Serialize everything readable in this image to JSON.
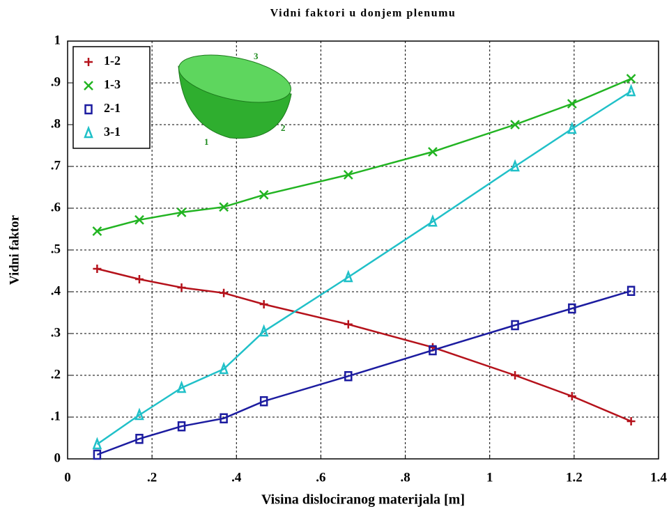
{
  "chart_data": {
    "type": "line",
    "title": "Vidni faktori u donjem plenumu",
    "x_label": "Visina dislociranog materijala [m]",
    "y_label": "Vidni faktor",
    "annotations": [
      "3",
      "2",
      "1"
    ],
    "x": [
      0.07,
      0.17,
      0.27,
      0.37,
      0.465,
      0.665,
      0.865,
      1.06,
      1.195,
      1.335
    ],
    "series": [
      {
        "name": "1-2",
        "color": "#b5121b",
        "marker": "plus",
        "values": [
          0.455,
          0.43,
          0.41,
          0.397,
          0.37,
          0.322,
          0.267,
          0.2,
          0.15,
          0.09
        ]
      },
      {
        "name": "1-3",
        "color": "#22b422",
        "marker": "x",
        "values": [
          0.545,
          0.572,
          0.59,
          0.603,
          0.632,
          0.68,
          0.735,
          0.8,
          0.85,
          0.91
        ]
      },
      {
        "name": "2-1",
        "color": "#1c1ca0",
        "marker": "square",
        "values": [
          0.01,
          0.048,
          0.078,
          0.097,
          0.138,
          0.198,
          0.26,
          0.32,
          0.36,
          0.402
        ]
      },
      {
        "name": "3-1",
        "color": "#20c0c8",
        "marker": "triangle",
        "values": [
          0.035,
          0.105,
          0.17,
          0.215,
          0.305,
          0.435,
          0.568,
          0.7,
          0.79,
          0.88
        ]
      }
    ],
    "xlim": [
      0,
      1.4
    ],
    "xticks": [
      0,
      {
        "value": 0.2,
        "label": ".2"
      },
      {
        "value": 0.4,
        "label": ".4"
      },
      {
        "value": 0.6,
        "label": ".6"
      },
      {
        "value": 0.8,
        "label": ".8"
      },
      1,
      1.2,
      1.4
    ],
    "ylim": [
      0,
      1
    ],
    "yticks": [
      0,
      {
        "value": 0.1,
        "label": ".1"
      },
      {
        "value": 0.2,
        "label": ".2"
      },
      {
        "value": 0.3,
        "label": ".3"
      },
      {
        "value": 0.4,
        "label": ".4"
      },
      {
        "value": 0.5,
        "label": ".5"
      },
      {
        "value": 0.6,
        "label": ".6"
      },
      {
        "value": 0.7,
        "label": ".7"
      },
      {
        "value": 0.8,
        "label": ".8"
      },
      {
        "value": 0.9,
        "label": ".9"
      },
      1
    ],
    "grid": true,
    "legend": "upper left"
  }
}
